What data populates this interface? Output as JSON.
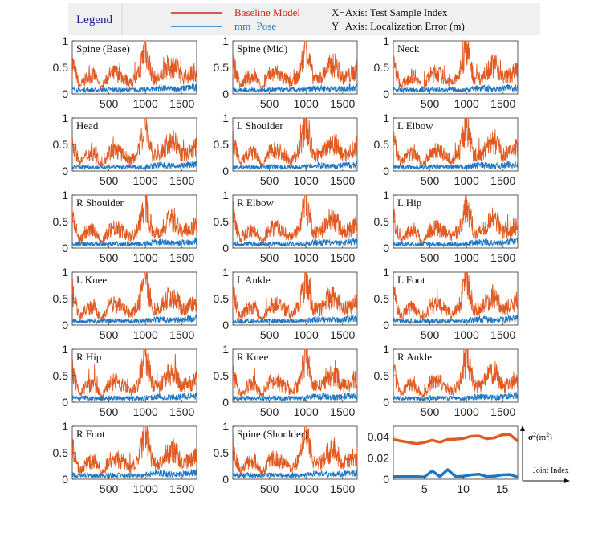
{
  "legend": {
    "title": "Legend",
    "baseline_label": "Baseline Model",
    "mmpose_label": "mm−Pose",
    "x_axis_note": "X−Axis: Test Sample Index",
    "y_axis_note": "Y−Axis: Localization Error (m)"
  },
  "colors": {
    "baseline": "#e05a22",
    "mmpose": "#1f77c4",
    "legend_baseline_text": "#d62020",
    "legend_title": "#1a1a9a"
  },
  "chart_data": [
    {
      "type": "line",
      "panel_titles": [
        "Spine (Base)",
        "Spine (Mid)",
        "Neck",
        "Head",
        "L Shoulder",
        "L Elbow",
        "R Shoulder",
        "R Elbow",
        "L Hip",
        "L Knee",
        "L Ankle",
        "L Foot",
        "R Hip",
        "R Knee",
        "R Ankle",
        "R Foot",
        "Spine (Shoulder)"
      ],
      "xlabel": "X−Axis: Test Sample Index",
      "ylabel": "Y−Axis: Localization Error (m)",
      "xlim": [
        0,
        1700
      ],
      "ylim": [
        0,
        1
      ],
      "xticks": [
        500,
        1000,
        1500
      ],
      "yticks": [
        0,
        0.5,
        1
      ],
      "xtick_labels": [
        "500",
        "1000",
        "1500"
      ],
      "ytick_labels": [
        "0",
        "0.5",
        "1"
      ],
      "x": [
        0,
        100,
        200,
        300,
        400,
        500,
        600,
        700,
        800,
        900,
        1000,
        1100,
        1200,
        1300,
        1400,
        1500,
        1600,
        1700
      ],
      "series": [
        {
          "name": "Baseline Model",
          "values": [
            0.6,
            0.15,
            0.3,
            0.35,
            0.1,
            0.35,
            0.4,
            0.3,
            0.2,
            0.35,
            0.9,
            0.3,
            0.3,
            0.5,
            0.55,
            0.3,
            0.35,
            0.45
          ]
        },
        {
          "name": "mm−Pose",
          "values": [
            0.08,
            0.07,
            0.08,
            0.07,
            0.07,
            0.08,
            0.08,
            0.07,
            0.08,
            0.07,
            0.08,
            0.1,
            0.11,
            0.1,
            0.09,
            0.1,
            0.12,
            0.12
          ]
        }
      ]
    },
    {
      "type": "line",
      "xlabel": "Joint Index",
      "ylabel": "σ²(m²)",
      "ylabel_main": "σ",
      "ylabel_sup": "2",
      "ylabel_unit": "(m",
      "ylabel_unit_sup": "2",
      "ylabel_close": ")",
      "xlim": [
        1,
        17
      ],
      "ylim": [
        0,
        0.05
      ],
      "xticks": [
        5,
        10,
        15
      ],
      "yticks": [
        0,
        0.02,
        0.04
      ],
      "xtick_labels": [
        "5",
        "10",
        "15"
      ],
      "ytick_labels": [
        "0",
        "0.02",
        "0.04"
      ],
      "x": [
        1,
        2,
        3,
        4,
        5,
        6,
        7,
        8,
        9,
        10,
        11,
        12,
        13,
        14,
        15,
        16,
        17
      ],
      "series": [
        {
          "name": "Baseline Model",
          "values": [
            0.0375,
            0.036,
            0.0348,
            0.0335,
            0.0348,
            0.0368,
            0.035,
            0.0375,
            0.0378,
            0.0385,
            0.0405,
            0.0408,
            0.0382,
            0.039,
            0.0418,
            0.0422,
            0.0358
          ]
        },
        {
          "name": "mm−Pose",
          "values": [
            0.0025,
            0.0025,
            0.0025,
            0.0025,
            0.0022,
            0.0078,
            0.0025,
            0.009,
            0.0025,
            0.0028,
            0.0042,
            0.0048,
            0.0025,
            0.0028,
            0.0042,
            0.0045,
            0.002
          ]
        }
      ]
    }
  ]
}
